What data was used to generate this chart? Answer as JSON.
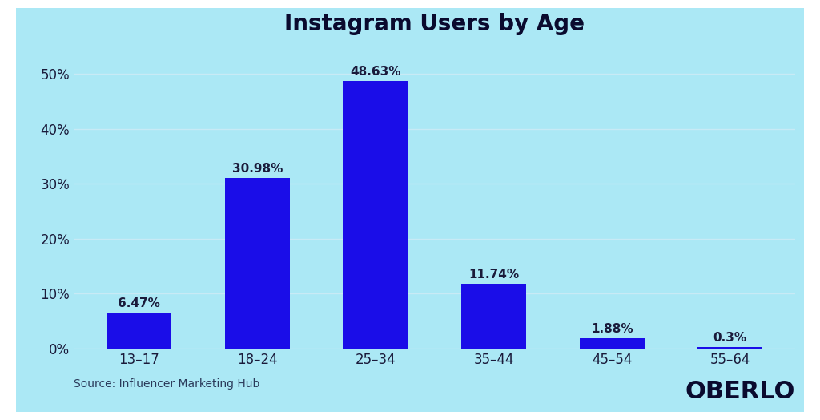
{
  "title": "Instagram Users by Age",
  "categories": [
    "13–17",
    "18–24",
    "25–34",
    "35–44",
    "45–54",
    "55–64"
  ],
  "values": [
    6.47,
    30.98,
    48.63,
    11.74,
    1.88,
    0.3
  ],
  "labels": [
    "6.47%",
    "30.98%",
    "48.63%",
    "11.74%",
    "1.88%",
    "0.3%"
  ],
  "bar_color": "#1a0de8",
  "background_color": "#abe8f5",
  "outer_background": "#ffffff",
  "title_fontsize": 20,
  "label_fontsize": 11,
  "tick_fontsize": 12,
  "source_text": "Source: Influencer Marketing Hub",
  "brand_text": "OBERLO",
  "brand_color": "#0a0a2e",
  "source_color": "#2a3a5a",
  "ylim": [
    0,
    55
  ],
  "yticks": [
    0,
    10,
    20,
    30,
    40,
    50
  ],
  "grid_color": "#c8eaf5",
  "bar_width": 0.55
}
